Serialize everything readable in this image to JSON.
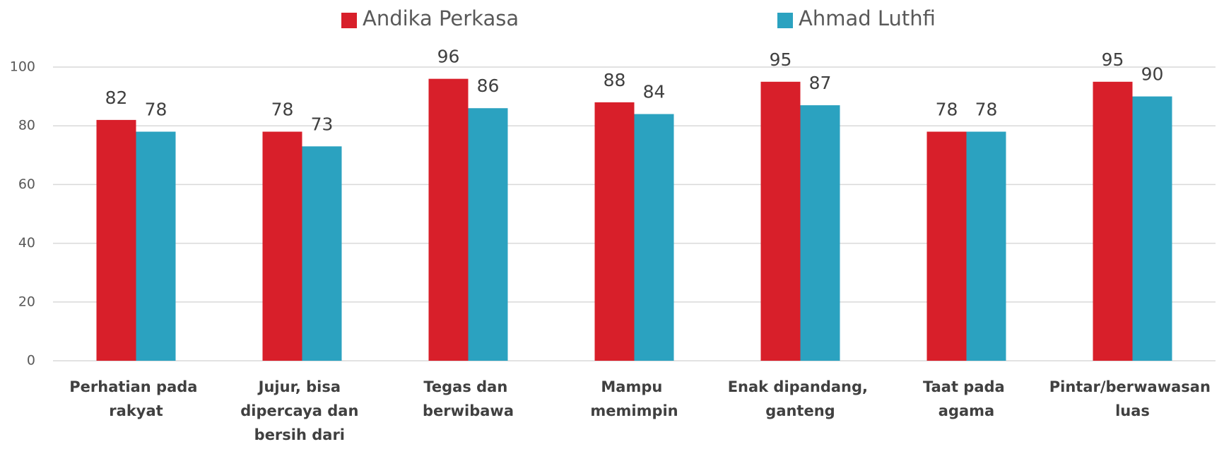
{
  "chart_data": {
    "type": "bar",
    "categories": [
      "Perhatian pada rakyat",
      "Jujur, bisa dipercaya dan bersih dari korupsi",
      "Tegas dan berwibawa",
      "Mampu memimpin",
      "Enak dipandang, ganteng",
      "Taat pada agama",
      "Pintar/berwawasan luas"
    ],
    "series": [
      {
        "name": "Andika Perkasa",
        "color": "#d81f2a",
        "values": [
          82,
          78,
          96,
          88,
          95,
          78,
          95
        ]
      },
      {
        "name": "Ahmad Luthfi",
        "color": "#2ba2c0",
        "values": [
          78,
          73,
          86,
          84,
          87,
          78,
          90
        ]
      }
    ],
    "ylim": [
      0,
      100
    ],
    "yticks": [
      0,
      20,
      40,
      60,
      80,
      100
    ],
    "grid": true,
    "legend": "top"
  }
}
